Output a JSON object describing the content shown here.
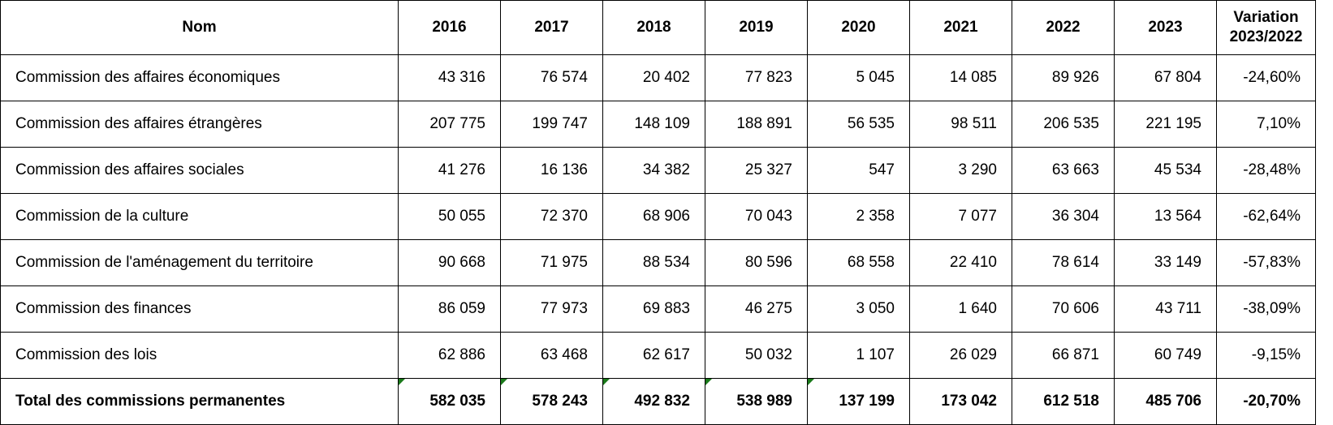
{
  "table": {
    "header": [
      "Nom",
      "2016",
      "2017",
      "2018",
      "2019",
      "2020",
      "2021",
      "2022",
      "2023",
      "Variation 2023/2022"
    ],
    "rows": [
      [
        "Commission des affaires économiques",
        "43 316",
        "76 574",
        "20 402",
        "77 823",
        "5 045",
        "14 085",
        "89 926",
        "67 804",
        "-24,60%"
      ],
      [
        "Commission des affaires étrangères",
        "207 775",
        "199 747",
        "148 109",
        "188 891",
        "56 535",
        "98 511",
        "206 535",
        "221 195",
        "7,10%"
      ],
      [
        "Commission des affaires sociales",
        "41 276",
        "16 136",
        "34 382",
        "25 327",
        "547",
        "3 290",
        "63 663",
        "45 534",
        "-28,48%"
      ],
      [
        "Commission de la culture",
        "50 055",
        "72 370",
        "68 906",
        "70 043",
        "2 358",
        "7 077",
        "36 304",
        "13 564",
        "-62,64%"
      ],
      [
        "Commission de l'aménagement du territoire",
        "90 668",
        "71 975",
        "88 534",
        "80 596",
        "68 558",
        "22 410",
        "78 614",
        "33 149",
        "-57,83%"
      ],
      [
        "Commission des finances",
        "86 059",
        "77 973",
        "69 883",
        "46 275",
        "3 050",
        "1 640",
        "70 606",
        "43 711",
        "-38,09%"
      ],
      [
        "Commission des lois",
        "62 886",
        "63 468",
        "62 617",
        "50 032",
        "1 107",
        "26 029",
        "66 871",
        "60 749",
        "-9,15%"
      ]
    ],
    "total": [
      "Total des commissions permanentes",
      "582 035",
      "578 243",
      "492 832",
      "538 989",
      "137 199",
      "173 042",
      "612 518",
      "485 706",
      "-20,70%"
    ]
  }
}
